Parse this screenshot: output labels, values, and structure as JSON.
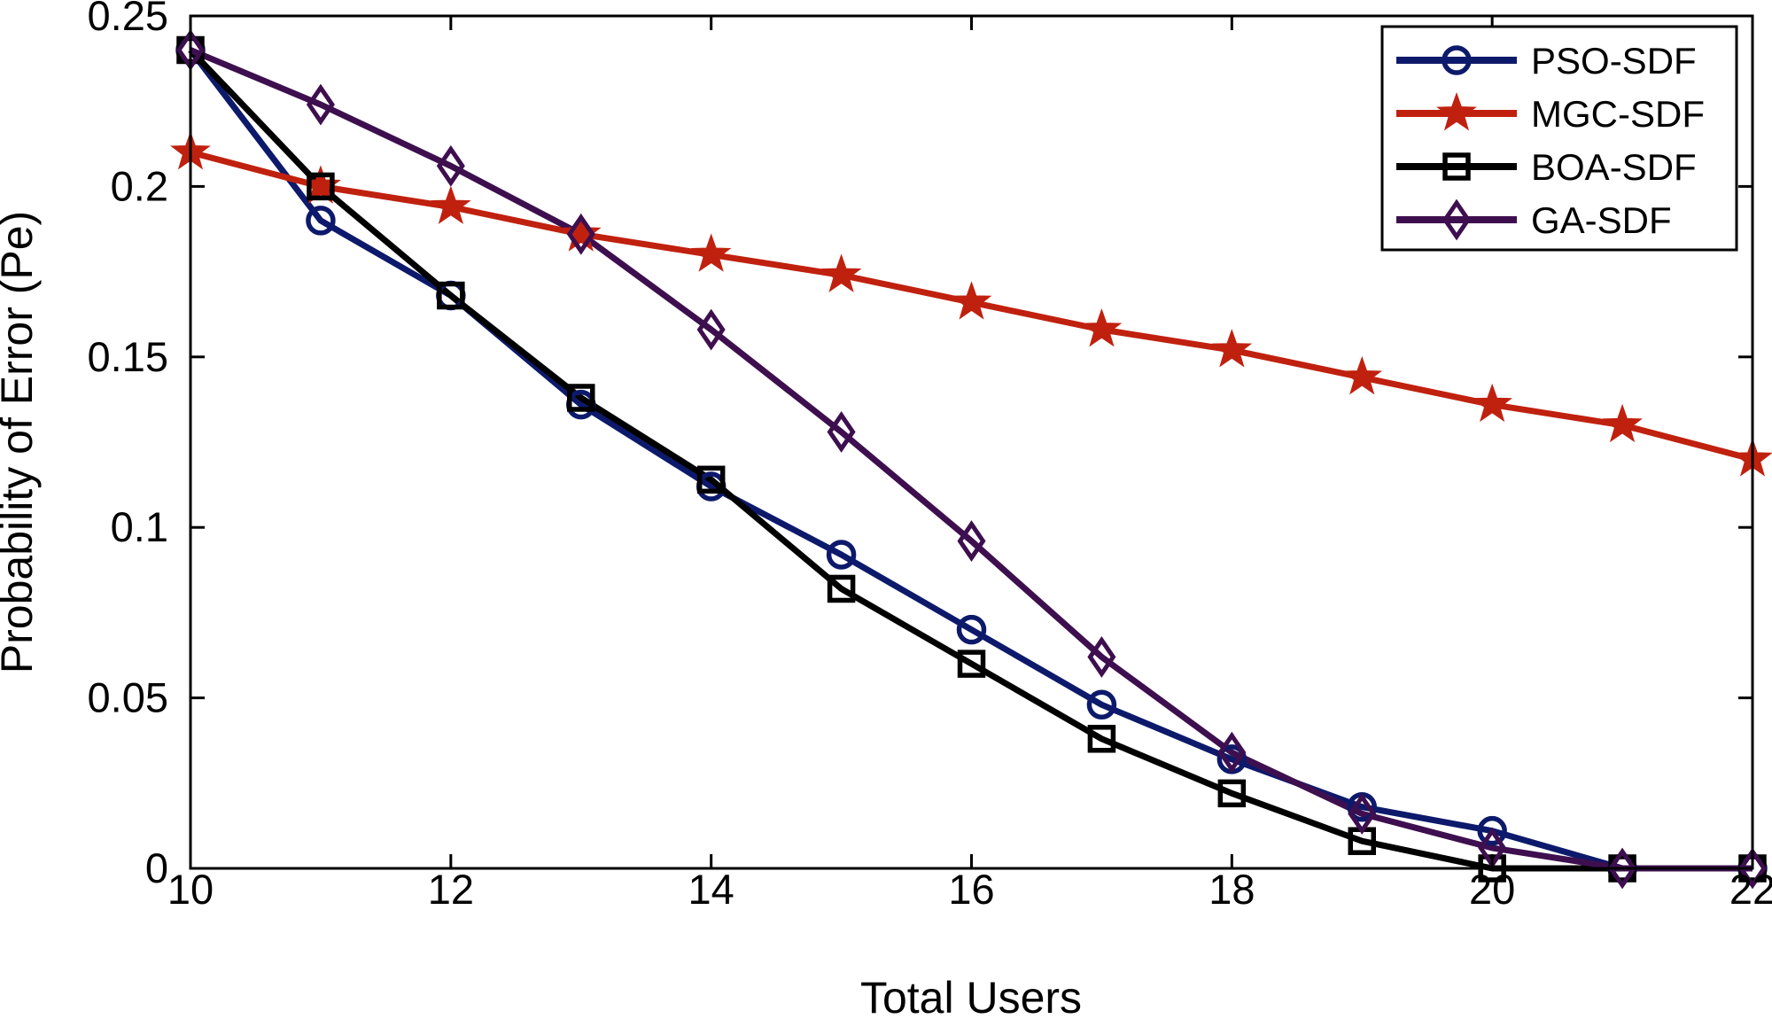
{
  "chart_data": {
    "type": "line",
    "xlabel": "Total Users",
    "ylabel": "Probability of Error (Pe)",
    "xlim": [
      10,
      22
    ],
    "ylim": [
      0,
      0.25
    ],
    "xticks": [
      10,
      12,
      14,
      16,
      18,
      20,
      22
    ],
    "xtick_labels": [
      "10",
      "12",
      "14",
      "16",
      "18",
      "20",
      "22"
    ],
    "yticks": [
      0,
      0.05,
      0.1,
      0.15,
      0.2,
      0.25
    ],
    "ytick_labels": [
      "0",
      "0.05",
      "0.1",
      "0.15",
      "0.2",
      "0.25"
    ],
    "grid": false,
    "legend_position": "top-right",
    "x": [
      10,
      11,
      12,
      13,
      14,
      15,
      16,
      17,
      18,
      19,
      20,
      21,
      22
    ],
    "series": [
      {
        "name": "PSO-SDF",
        "color": "#0d1a6b",
        "marker": "circle",
        "values": [
          0.24,
          0.19,
          0.168,
          0.136,
          0.112,
          0.092,
          0.07,
          0.048,
          0.032,
          0.018,
          0.011,
          0.0,
          0.0
        ]
      },
      {
        "name": "MGC-SDF",
        "color": "#c0210f",
        "marker": "star",
        "values": [
          0.21,
          0.2,
          0.194,
          0.186,
          0.18,
          0.174,
          0.166,
          0.158,
          0.152,
          0.144,
          0.136,
          0.13,
          0.12
        ]
      },
      {
        "name": "BOA-SDF",
        "color": "#000000",
        "marker": "square",
        "values": [
          0.24,
          0.2,
          0.168,
          0.138,
          0.114,
          0.082,
          0.06,
          0.038,
          0.022,
          0.008,
          0.0,
          0.0,
          0.0
        ]
      },
      {
        "name": "GA-SDF",
        "color": "#3e0f4f",
        "marker": "diamond",
        "values": [
          0.24,
          0.224,
          0.206,
          0.186,
          0.158,
          0.128,
          0.096,
          0.062,
          0.034,
          0.016,
          0.006,
          0.0,
          0.0
        ]
      }
    ]
  }
}
